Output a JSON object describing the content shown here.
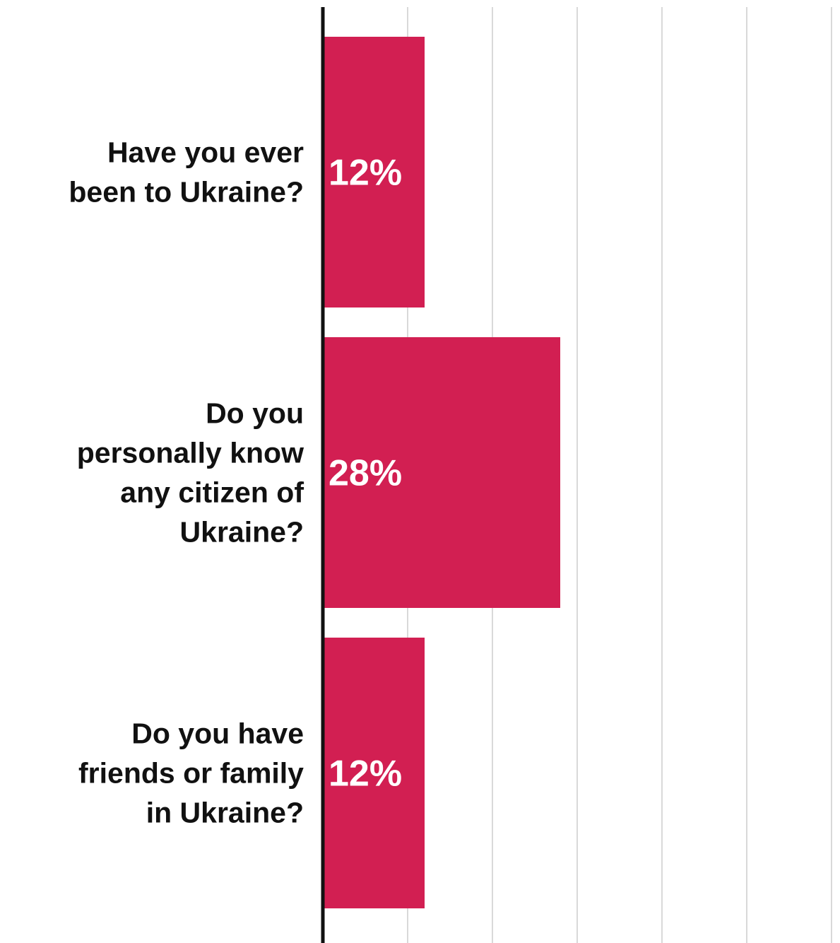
{
  "chart_data": {
    "type": "bar",
    "orientation": "horizontal",
    "categories": [
      "Have you ever been to Ukraine?",
      "Do you personally know any citizen of Ukraine?",
      "Do you have friends or family in Ukraine?"
    ],
    "category_lines": [
      [
        "Have you ever",
        "been to Ukraine?"
      ],
      [
        "Do you",
        "personally know",
        "any citizen of",
        "Ukraine?"
      ],
      [
        "Do you have",
        "friends or family",
        "in Ukraine?"
      ]
    ],
    "values": [
      12,
      28,
      12
    ],
    "value_labels": [
      "12%",
      "28%",
      "12%"
    ],
    "xlim": [
      0,
      60
    ],
    "x_gridlines": [
      10,
      20,
      30,
      40,
      50,
      60
    ],
    "grid": true,
    "title": "",
    "xlabel": "",
    "ylabel": "",
    "bar_color": "#d21f52",
    "grid_color": "#d9d9d9",
    "axis_color": "#111111"
  }
}
